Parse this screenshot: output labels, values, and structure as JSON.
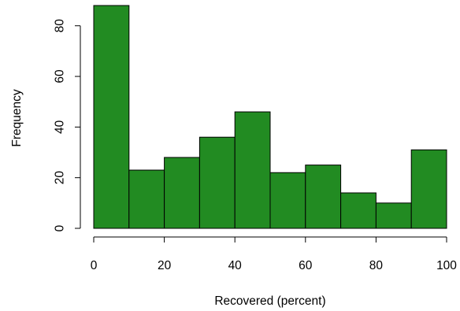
{
  "chart_data": {
    "type": "bar",
    "subtype": "histogram",
    "xlabel": "Recovered (percent)",
    "ylabel": "Frequency",
    "bins": [
      {
        "from": 0,
        "to": 10,
        "count": 88
      },
      {
        "from": 10,
        "to": 20,
        "count": 23
      },
      {
        "from": 20,
        "to": 30,
        "count": 28
      },
      {
        "from": 30,
        "to": 40,
        "count": 36
      },
      {
        "from": 40,
        "to": 50,
        "count": 46
      },
      {
        "from": 50,
        "to": 60,
        "count": 22
      },
      {
        "from": 60,
        "to": 70,
        "count": 25
      },
      {
        "from": 70,
        "to": 80,
        "count": 14
      },
      {
        "from": 80,
        "to": 90,
        "count": 10
      },
      {
        "from": 90,
        "to": 100,
        "count": 31
      }
    ],
    "xlim": [
      0,
      100
    ],
    "ylim": [
      0,
      88
    ],
    "x_ticks": [
      0,
      20,
      40,
      60,
      80,
      100
    ],
    "y_ticks": [
      0,
      20,
      40,
      60,
      80
    ],
    "bar_color": "#228b22",
    "edge_color": "#000000",
    "grid": false
  }
}
